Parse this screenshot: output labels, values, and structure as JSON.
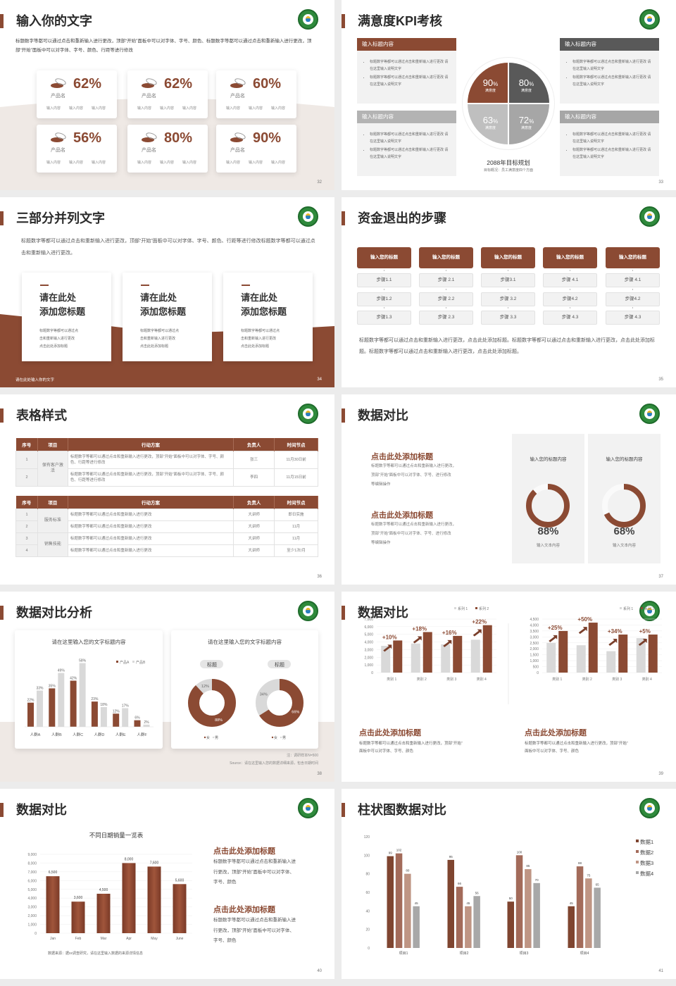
{
  "colors": {
    "brand": "#8B4A33",
    "dark_gray": "#595959",
    "mid_gray": "#A6A6A6",
    "light_gray": "#D9D9D9",
    "panel": "#F2F2F2",
    "logo_green": "#2F8A3C"
  },
  "s32": {
    "title": "输入你的文字",
    "page": "32",
    "intro": "标题数字等都可以通过点击和重新输入进行更改，顶部“开始”面板中可以对字体、字号、颜色、标题数字等都可以通过点击和重新输入进行更改，顶部“开始”面板中可以对字体、字号、颜色、行距等进行修改",
    "cards": [
      {
        "value": "62%",
        "name": "产品名",
        "labels": [
          "输入内容",
          "输入内容",
          "输入内容"
        ]
      },
      {
        "value": "62%",
        "name": "产品名",
        "labels": [
          "输入内容",
          "输入内容",
          "输入内容"
        ]
      },
      {
        "value": "60%",
        "name": "产品名",
        "labels": [
          "输入内容",
          "输入内容",
          "输入内容"
        ]
      },
      {
        "value": "56%",
        "name": "产品名",
        "labels": [
          "输入内容",
          "输入内容",
          "输入内容"
        ]
      },
      {
        "value": "80%",
        "name": "产品名",
        "labels": [
          "输入内容",
          "输入内容",
          "输入内容"
        ]
      },
      {
        "value": "90%",
        "name": "产品名",
        "labels": [
          "输入内容",
          "输入内容",
          "输入内容"
        ]
      }
    ]
  },
  "s33": {
    "title": "满意度KPI考核",
    "page": "33",
    "boxes": [
      {
        "header": "输入标题内容",
        "bullets": [
          "标题数字等都可以通过点击和重新输入进行更改 请在这里输入说明文字",
          "标题数字等都可以通过点击和重新输入进行更改 请在这里输入说明文字"
        ]
      },
      {
        "header": "输入标题内容",
        "bullets": [
          "标题数字等都可以通过点击和重新输入进行更改 请在这里输入说明文字",
          "标题数字等都可以通过点击和重新输入进行更改 请在这里输入说明文字"
        ]
      },
      {
        "header": "输入标题内容",
        "bullets": [
          "标题数字等都可以通过点击和重新输入进行更改 请在这里输入说明文字",
          "标题数字等都可以通过点击和重新输入进行更改 请在这里输入说明文字"
        ]
      },
      {
        "header": "输入标题内容",
        "bullets": [
          "标题数字等都可以通过点击和重新输入进行更改 请在这里输入说明文字",
          "标题数字等都可以通过点击和重新输入进行更改 请在这里输入说明文字"
        ]
      }
    ],
    "quadrants": [
      {
        "value": "90",
        "unit": "%",
        "label": "满意度"
      },
      {
        "value": "80",
        "unit": "%",
        "label": "满意度"
      },
      {
        "value": "63",
        "unit": "%",
        "label": "满意度"
      },
      {
        "value": "72",
        "unit": "%",
        "label": "满意度"
      }
    ],
    "goal_title": "2088年目标规划",
    "goal_sub": "目标概况：员工满意度四个方面"
  },
  "s34": {
    "title": "三部分并列文字",
    "page": "34",
    "intro": "标题数字等都可以通过点击和重新输入进行更改，顶部“开始”面板中可以对字体、字号、颜色、行距等进行修改标题数字等都可以通过点击和重新输入进行更改。",
    "cards": [
      {
        "title1": "请在此处",
        "title2": "添加您标题",
        "text": [
          "标题数字等都可以通过点",
          "击和重新输入进行更改",
          "点击此处添加标题"
        ]
      },
      {
        "title1": "请在此处",
        "title2": "添加您标题",
        "text": [
          "标题数字等都可以通过点",
          "击和重新输入进行更改",
          "点击此处添加标题"
        ]
      },
      {
        "title1": "请在此处",
        "title2": "添加您标题",
        "text": [
          "标题数字等都可以通过点",
          "击和重新输入进行更改",
          "点击此处添加标题"
        ]
      }
    ],
    "footer": "请在此处输入你的文字"
  },
  "s35": {
    "title": "资金退出的步骤",
    "page": "35",
    "columns": [
      {
        "header": "输入您的标题",
        "steps": [
          "步骤1.1",
          "步骤1.2",
          "步骤1.3"
        ]
      },
      {
        "header": "输入您的标题",
        "steps": [
          "步骤 2.1",
          "步骤 2.2",
          "步骤 2.3"
        ]
      },
      {
        "header": "输入您的标题",
        "steps": [
          "步骤3.1",
          "步骤 3.2",
          "步骤 3.3"
        ]
      },
      {
        "header": "输入您的标题",
        "steps": [
          "步骤 4.1",
          "步骤4.2",
          "步骤 4.3"
        ]
      },
      {
        "header": "输入您的标题",
        "steps": [
          "步骤 4.1",
          "步骤4.2",
          "步骤 4.3"
        ]
      }
    ],
    "paragraph": "标题数字等都可以通过点击和重新输入进行更改，点击此处添加标题。标题数字等都可以通过点击和重新输入进行更改，点击此处添加标题。标题数字等都可以通过点击和重新输入进行更改，点击此处添加标题。"
  },
  "s36": {
    "title": "表格样式",
    "page": "36",
    "headers": [
      "序号",
      "项目",
      "行动方案",
      "负责人",
      "时间节点"
    ],
    "table1": [
      {
        "item": "保有客户激活",
        "rows": [
          {
            "no": "1",
            "plan": "标题数字等都可以通过点击和重新输入进行更改，顶部“开始”面板中可以对字体、字号、颜色、行距等进行修改",
            "owner": "张三",
            "time": "11月30日前"
          },
          {
            "no": "2",
            "plan": "标题数字等都可以通过点击和重新输入进行更改，顶部“开始”面板中可以对字体、字号、颜色、行距等进行修改",
            "owner": "李四",
            "time": "11月15日前"
          }
        ]
      }
    ],
    "table2": [
      {
        "item": "服务标准",
        "rows": [
          {
            "no": "1",
            "plan": "标题数字等都可以通过点击和重新输入进行更改",
            "owner": "大讲师",
            "time": "即日实施"
          },
          {
            "no": "2",
            "plan": "标题数字等都可以通过点击和重新输入进行更改",
            "owner": "大讲师",
            "time": "11月"
          }
        ]
      },
      {
        "item": "销售技能",
        "rows": [
          {
            "no": "3",
            "plan": "标题数字等都可以通过点击和重新输入进行更改",
            "owner": "大讲师",
            "time": "11月"
          },
          {
            "no": "4",
            "plan": "标题数字等都可以通过点击和重新输入进行更改",
            "owner": "大讲师",
            "time": "至少1次/月"
          }
        ]
      }
    ]
  },
  "s37": {
    "title": "数据对比",
    "page": "37",
    "blocks": [
      {
        "title": "点击此处添加标题",
        "text": [
          "标题数字等都可以通过点击和重新输入进行更改，",
          "顶部“开始”面板中可以对字体、字号、进行修改",
          "等编辑操作"
        ]
      },
      {
        "title": "点击此处添加标题",
        "text": [
          "标题数字等都可以通过点击和重新输入进行更改，",
          "顶部“开始”面板中可以对字体、字号、进行修改",
          "等编辑操作"
        ]
      }
    ],
    "cards": [
      {
        "title": "输入您的标题内容",
        "percent": 88,
        "value": "88%",
        "label": "输入文本内容"
      },
      {
        "title": "输入您的标题内容",
        "percent": 68,
        "value": "68%",
        "label": "输入文本内容"
      }
    ]
  },
  "s38": {
    "title": "数据对比分析",
    "page": "38",
    "note": "注：调研样本N=500",
    "source": "Source：请在这里输入您的数据详细来源，包含日期时间"
  },
  "s39": {
    "title": "数据对比",
    "page": "39",
    "blocks": [
      {
        "title": "点击此处添加标题",
        "text": [
          "标题数字等都可以通过点击和重新输入进行更改，顶部“开始”",
          "面板中可以对字体、字号、颜色"
        ]
      },
      {
        "title": "点击此处添加标题",
        "text": [
          "标题数字等都可以通过点击和重新输入进行更改，顶部“开始”",
          "面板中可以对字体、字号、颜色"
        ]
      }
    ]
  },
  "s40": {
    "title": "数据对比",
    "page": "40",
    "blocks": [
      {
        "title": "点击此处添加标题",
        "text": [
          "标题数字等都可以通过点击和重新输入进",
          "行更改，顶部“开始”面板中可以对字体、",
          "字号、颜色"
        ]
      },
      {
        "title": "点击此处添加标题",
        "text": [
          "标题数字等都可以通过点击和重新输入进",
          "行更改，顶部“开始”面板中可以对字体、",
          "字号、颜色"
        ]
      }
    ]
  },
  "s41": {
    "title": "柱状图数据对比",
    "page": "41"
  },
  "chart_data": [
    {
      "type": "bar",
      "title": "请在这里输入您的文字标题内容",
      "categories": [
        "人群A",
        "人群B",
        "人群C",
        "人群D",
        "人群E",
        "人群F"
      ],
      "series": [
        {
          "name": "产品A",
          "values": [
            22,
            35,
            42,
            23,
            12,
            6
          ],
          "labels": [
            "22%",
            "35%",
            "42%",
            "23%",
            "12%",
            "6%"
          ]
        },
        {
          "name": "产品B",
          "values": [
            33,
            49,
            58,
            18,
            17,
            2
          ],
          "labels": [
            "33%",
            "49%",
            "58%",
            "18%",
            "17%",
            "2%"
          ]
        }
      ],
      "ylim": [
        0,
        60
      ],
      "legend": "top-right",
      "grid": false
    },
    {
      "type": "pie",
      "title": "请在这里输入您的文字标题内容",
      "subtitle": "标题",
      "categories": [
        "女",
        "男"
      ],
      "values": [
        88,
        12
      ],
      "labels": [
        "88%",
        "12%"
      ],
      "legend": "bottom"
    },
    {
      "type": "pie",
      "subtitle": "标题",
      "categories": [
        "女",
        "男"
      ],
      "values": [
        66,
        34
      ],
      "labels": [
        "66%",
        "34%"
      ],
      "legend": "bottom"
    },
    {
      "type": "bar",
      "categories": [
        "类别 1",
        "类别 2",
        "类别 3",
        "类别 4"
      ],
      "series": [
        {
          "name": "系列 1",
          "values": [
            3500,
            3800,
            3700,
            4300
          ]
        },
        {
          "name": "系列 2",
          "values": [
            4200,
            5300,
            4800,
            6200
          ]
        }
      ],
      "annotations": [
        "+10%",
        "+18%",
        "+16%",
        "+22%"
      ],
      "yticks": [
        "0",
        "1,000",
        "2,000",
        "3,000",
        "4,000",
        "5,000",
        "6,000",
        "7,000"
      ],
      "ylim": [
        0,
        7000
      ],
      "legend": "top-right",
      "grid": true
    },
    {
      "type": "bar",
      "categories": [
        "类别 1",
        "类别 2",
        "类别 3",
        "类别 4"
      ],
      "series": [
        {
          "name": "系列 1",
          "values": [
            2500,
            2300,
            1800,
            2900
          ]
        },
        {
          "name": "系列 2",
          "values": [
            3500,
            4200,
            3200,
            3200
          ]
        }
      ],
      "annotations": [
        "+25%",
        "+50%",
        "+34%",
        "+5%"
      ],
      "yticks": [
        "0",
        "500",
        "1,000",
        "1,500",
        "2,000",
        "2,500",
        "3,000",
        "3,500",
        "4,000",
        "4,500"
      ],
      "ylim": [
        0,
        4500
      ],
      "legend": "top-right",
      "grid": true
    },
    {
      "type": "bar",
      "title": "不同日期销量一览表",
      "categories": [
        "Jan",
        "Feb",
        "Mar",
        "Apr",
        "May",
        "June"
      ],
      "values": [
        6500,
        3600,
        4500,
        8000,
        7600,
        5600
      ],
      "labels": [
        "6,500",
        "3,600",
        "4,500",
        "8,000",
        "7,600",
        "5,600"
      ],
      "yticks": [
        "0",
        "1,000",
        "2,000",
        "3,000",
        "4,000",
        "5,000",
        "6,000",
        "7,000",
        "8,000",
        "9,000"
      ],
      "ylim": [
        0,
        9000
      ],
      "grid": true,
      "source": "数据来源：据xx调查研究，请在这里输入数据的来源详情信息"
    },
    {
      "type": "bar",
      "categories": [
        "项目1",
        "项目2",
        "项目3",
        "项目4"
      ],
      "series": [
        {
          "name": "数据1",
          "values": [
            99,
            95,
            50,
            45
          ]
        },
        {
          "name": "数据2",
          "values": [
            102,
            66,
            100,
            88
          ]
        },
        {
          "name": "数据3",
          "values": [
            80,
            45,
            85,
            75
          ]
        },
        {
          "name": "数据4",
          "values": [
            45,
            56,
            70,
            65
          ]
        }
      ],
      "yticks": [
        "0",
        "20",
        "40",
        "60",
        "80",
        "100",
        "120"
      ],
      "ylim": [
        0,
        120
      ],
      "legend": "right",
      "grid": false,
      "colors": [
        "#7F4530",
        "#A36B5A",
        "#BF9584",
        "#A8A8A8"
      ]
    }
  ]
}
